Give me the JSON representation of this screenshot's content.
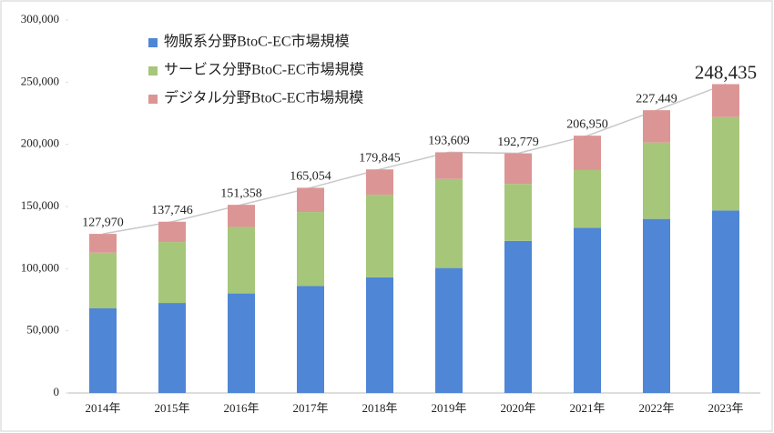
{
  "chart_data": {
    "type": "stacked_bar",
    "categories": [
      "2014年",
      "2015年",
      "2016年",
      "2017年",
      "2018年",
      "2019年",
      "2020年",
      "2021年",
      "2022年",
      "2023年"
    ],
    "series": [
      {
        "name": "物販系分野BtoC-EC市場規模",
        "color": "#4f86d6",
        "values": [
          68043,
          72398,
          80043,
          86008,
          92992,
          100515,
          122333,
          132865,
          139997,
          146760
        ]
      },
      {
        "name": "サービス分野BtoC-EC市場規模",
        "color": "#a6c67a",
        "values": [
          44816,
          49014,
          53532,
          59568,
          66471,
          71672,
          45832,
          46424,
          61477,
          75169
        ]
      },
      {
        "name": "デジタル分野BtoC-EC市場規模",
        "color": "#dc9595",
        "values": [
          15111,
          16334,
          17782,
          19478,
          20382,
          21422,
          24614,
          27661,
          25974,
          26506
        ]
      }
    ],
    "totals": {
      "color": "#c8c8c8",
      "values": [
        127970,
        137746,
        151358,
        165054,
        179845,
        193609,
        192779,
        206950,
        227449,
        248435
      ],
      "value_labels": [
        "127,970",
        "137,746",
        "151,358",
        "165,054",
        "179,845",
        "193,609",
        "192,779",
        "206,950",
        "227,449",
        "248,435"
      ]
    },
    "ylim": [
      0,
      300000
    ],
    "yticks": [
      0,
      {
        "value": 50000,
        "label": "50,000"
      },
      {
        "value": 100000,
        "label": "100,000"
      },
      {
        "value": 150000,
        "label": "150,000"
      },
      {
        "value": 200000,
        "label": "200,000"
      },
      {
        "value": 250000,
        "label": "250,000"
      },
      {
        "value": 300000,
        "label": "300,000"
      }
    ]
  }
}
